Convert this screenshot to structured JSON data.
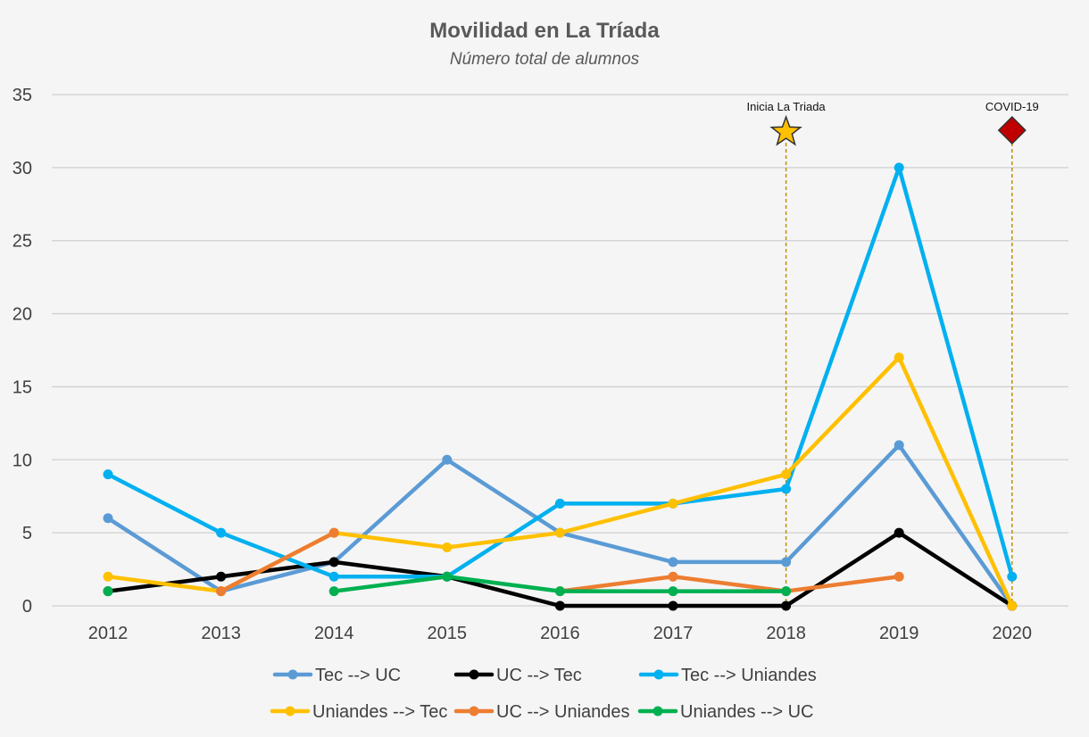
{
  "chart_data": {
    "type": "line",
    "title": "Movilidad en La Tríada",
    "subtitle": "Número total de alumnos",
    "xlabel": "",
    "ylabel": "",
    "categories": [
      "2012",
      "2013",
      "2014",
      "2015",
      "2016",
      "2017",
      "2018",
      "2019",
      "2020"
    ],
    "ylim": [
      0,
      35
    ],
    "yticks": [
      0,
      5,
      10,
      15,
      20,
      25,
      30,
      35
    ],
    "grid": true,
    "legend_position": "bottom",
    "series": [
      {
        "name": "Tec --> UC",
        "color": "#5b9bd5",
        "values": [
          6,
          1,
          3,
          10,
          5,
          3,
          3,
          11,
          0
        ]
      },
      {
        "name": "UC --> Tec",
        "color": "#000000",
        "values": [
          1,
          2,
          3,
          2,
          0,
          0,
          0,
          5,
          0
        ]
      },
      {
        "name": "Tec --> Uniandes",
        "color": "#00b0f0",
        "values": [
          9,
          5,
          2,
          2,
          7,
          7,
          8,
          30,
          2
        ]
      },
      {
        "name": "Uniandes --> Tec",
        "color": "#ffc000",
        "values": [
          2,
          1,
          5,
          4,
          5,
          7,
          9,
          17,
          0
        ]
      },
      {
        "name": "UC --> Uniandes",
        "color": "#ed7d31",
        "values": [
          null,
          1,
          5,
          null,
          1,
          2,
          1,
          2,
          null
        ]
      },
      {
        "name": "Uniandes --> UC",
        "color": "#00b050",
        "values": [
          1,
          null,
          1,
          2,
          1,
          1,
          1,
          null,
          null
        ]
      }
    ],
    "annotations": [
      {
        "label": "Inicia La Triada",
        "x": "2018",
        "marker": "star",
        "color": "#ffc000"
      },
      {
        "label": "COVID-19",
        "x": "2020",
        "marker": "diamond",
        "color": "#c00000"
      }
    ],
    "annotation_line_color": "#bf9000"
  }
}
